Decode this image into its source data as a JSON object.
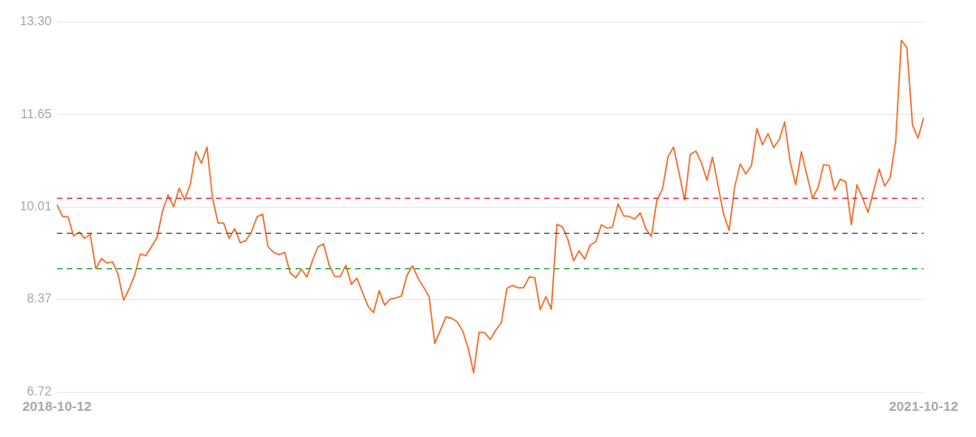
{
  "chart_data": {
    "type": "line",
    "categories": [
      "2018-10-12",
      null,
      null,
      null,
      null,
      null,
      null,
      null,
      null,
      null,
      null,
      null,
      null,
      null,
      null,
      null,
      null,
      null,
      null,
      null,
      null,
      null,
      null,
      null,
      null,
      null,
      null,
      null,
      null,
      null,
      null,
      null,
      null,
      null,
      null,
      null,
      null,
      null,
      null,
      null,
      null,
      null,
      null,
      null,
      null,
      null,
      null,
      null,
      null,
      null,
      null,
      null,
      null,
      null,
      null,
      null,
      null,
      null,
      null,
      null,
      null,
      null,
      null,
      null,
      null,
      null,
      null,
      null,
      null,
      null,
      null,
      null,
      null,
      null,
      null,
      null,
      null,
      null,
      null,
      null,
      null,
      null,
      null,
      null,
      null,
      null,
      null,
      null,
      null,
      null,
      null,
      null,
      null,
      null,
      null,
      null,
      null,
      null,
      null,
      null,
      null,
      null,
      null,
      null,
      null,
      null,
      null,
      null,
      null,
      null,
      null,
      null,
      null,
      null,
      null,
      null,
      null,
      null,
      null,
      null,
      null,
      null,
      null,
      null,
      null,
      null,
      null,
      null,
      null,
      null,
      null,
      null,
      null,
      null,
      null,
      null,
      null,
      null,
      null,
      null,
      null,
      null,
      null,
      null,
      null,
      null,
      null,
      null,
      null,
      null,
      null,
      null,
      null,
      null,
      null,
      null,
      "2021-10-12"
    ],
    "series": [
      {
        "color": "#f0702e",
        "values": [
          10.05,
          9.84,
          9.83,
          9.49,
          9.56,
          9.45,
          9.52,
          8.91,
          9.09,
          9.01,
          9.03,
          8.81,
          8.35,
          8.55,
          8.8,
          9.17,
          9.14,
          9.3,
          9.46,
          9.93,
          10.22,
          10.01,
          10.34,
          10.13,
          10.41,
          10.99,
          10.78,
          11.07,
          10.17,
          9.72,
          9.72,
          9.45,
          9.62,
          9.37,
          9.41,
          9.56,
          9.83,
          9.88,
          9.3,
          9.2,
          9.16,
          9.2,
          8.83,
          8.75,
          8.9,
          8.76,
          9.06,
          9.3,
          9.35,
          8.97,
          8.77,
          8.77,
          8.97,
          8.63,
          8.74,
          8.49,
          8.24,
          8.13,
          8.52,
          8.26,
          8.37,
          8.39,
          8.42,
          8.79,
          8.96,
          8.74,
          8.58,
          8.41,
          7.58,
          7.81,
          8.05,
          8.03,
          7.97,
          7.81,
          7.51,
          7.06,
          7.78,
          7.77,
          7.65,
          7.82,
          7.95,
          8.56,
          8.61,
          8.57,
          8.57,
          8.76,
          8.75,
          8.18,
          8.41,
          8.19,
          9.7,
          9.65,
          9.42,
          9.05,
          9.23,
          9.08,
          9.33,
          9.39,
          9.69,
          9.63,
          9.65,
          10.06,
          9.85,
          9.84,
          9.79,
          9.9,
          9.62,
          9.48,
          10.13,
          10.32,
          10.9,
          11.07,
          10.6,
          10.13,
          10.94,
          11.0,
          10.8,
          10.48,
          10.89,
          10.39,
          9.88,
          9.59,
          10.37,
          10.77,
          10.59,
          10.74,
          11.4,
          11.11,
          11.31,
          11.06,
          11.2,
          11.52,
          10.8,
          10.4,
          10.99,
          10.57,
          10.16,
          10.35,
          10.76,
          10.74,
          10.3,
          10.5,
          10.45,
          9.69,
          10.4,
          10.17,
          9.91,
          10.29,
          10.68,
          10.38,
          10.53,
          11.2,
          12.97,
          12.84,
          11.46,
          11.23,
          11.59
        ]
      }
    ],
    "ylim": [
      6.72,
      13.3
    ],
    "yticks": [
      6.72,
      8.37,
      10.01,
      11.65,
      {
        "value": 13.3,
        "label": "13.30"
      }
    ],
    "grid": "y",
    "marker": "none",
    "line_style": "solid",
    "legend": false,
    "ref_lines": [
      {
        "axis": "y",
        "value": 10.16,
        "color": "#d4243c",
        "line_style": "dashed"
      },
      {
        "axis": "y",
        "value": 9.54,
        "color": "#555555",
        "line_style": "dashed"
      },
      {
        "axis": "y",
        "value": 8.91,
        "color": "#23a33b",
        "line_style": "dashed"
      }
    ]
  }
}
